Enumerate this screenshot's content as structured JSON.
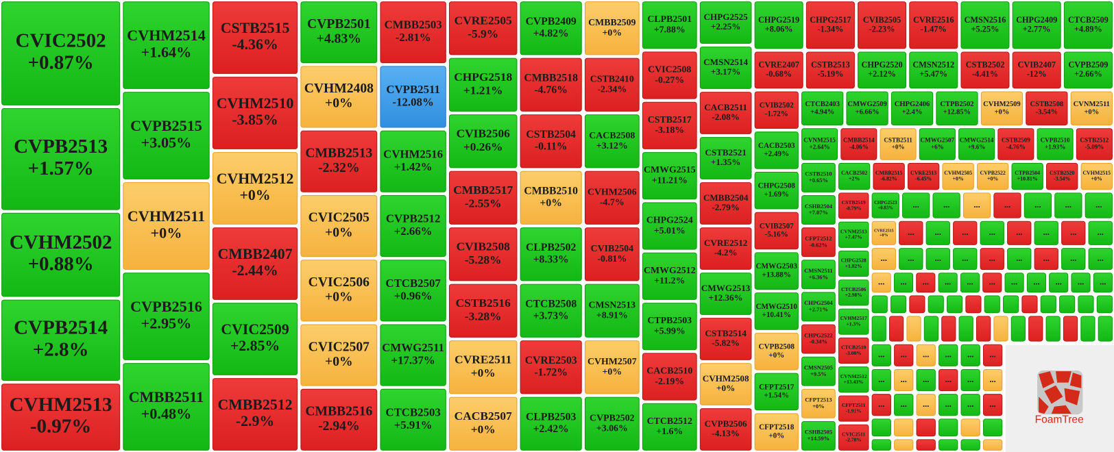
{
  "treemap": {
    "groups": [
      {
        "tiles": [
          {
            "code": "CVIC2502",
            "change": "+0.87%"
          },
          {
            "code": "CVPB2513",
            "change": "+1.57%"
          },
          {
            "code": "CVHM2502",
            "change": "+0.88%"
          },
          {
            "code": "CVPB2514",
            "change": "+2.8%"
          },
          {
            "code": "CVHM2513",
            "change": "-0.97%"
          }
        ]
      },
      {
        "tiles": [
          {
            "code": "CVHM2514",
            "change": "+1.64%"
          },
          {
            "code": "CVPB2515",
            "change": "+3.05%"
          },
          {
            "code": "CVHM2511",
            "change": "+0%"
          },
          {
            "code": "CVPB2516",
            "change": "+2.95%"
          },
          {
            "code": "CMBB2511",
            "change": "+0.48%"
          }
        ]
      },
      {
        "tiles": [
          {
            "code": "CSTB2515",
            "change": "-4.36%"
          },
          {
            "code": "CVHM2510",
            "change": "-3.85%"
          },
          {
            "code": "CVHM2512",
            "change": "+0%"
          },
          {
            "code": "CMBB2407",
            "change": "-2.44%"
          },
          {
            "code": "CVIC2509",
            "change": "+2.85%"
          },
          {
            "code": "CMBB2512",
            "change": "-2.9%"
          }
        ]
      },
      {
        "tiles": [
          {
            "code": "CVPB2501",
            "change": "+4.83%"
          },
          {
            "code": "CVHM2408",
            "change": "+0%"
          },
          {
            "code": "CMBB2513",
            "change": "-2.32%"
          },
          {
            "code": "CVIC2505",
            "change": "+0%"
          },
          {
            "code": "CVIC2506",
            "change": "+0%"
          },
          {
            "code": "CVIC2507",
            "change": "+0%"
          },
          {
            "code": "CMBB2516",
            "change": "-2.94%"
          }
        ]
      },
      {
        "tiles": [
          {
            "code": "CMBB2503",
            "change": "-2.81%"
          },
          {
            "code": "CVPB2511",
            "change": "-12.08%",
            "selected": true
          },
          {
            "code": "CVHM2516",
            "change": "+1.42%"
          },
          {
            "code": "CVPB2512",
            "change": "+2.66%"
          },
          {
            "code": "CTCB2507",
            "change": "+0.96%"
          },
          {
            "code": "CMWG2511",
            "change": "+17.37%"
          },
          {
            "code": "CTCB2503",
            "change": "+5.91%"
          }
        ]
      },
      {
        "tiles": [
          {
            "code": "CVRE2505",
            "change": "-5.9%"
          },
          {
            "code": "CHPG2518",
            "change": "+1.21%"
          },
          {
            "code": "CVIB2506",
            "change": "+0.26%"
          },
          {
            "code": "CMBB2517",
            "change": "-2.55%"
          },
          {
            "code": "CVIB2508",
            "change": "-5.28%"
          },
          {
            "code": "CSTB2516",
            "change": "-3.28%"
          },
          {
            "code": "CVRE2511",
            "change": "+0%"
          },
          {
            "code": "CACB2507",
            "change": "+0%"
          }
        ]
      },
      {
        "tiles": [
          {
            "code": "CVPB2409",
            "change": "+4.82%"
          },
          {
            "code": "CMBB2518",
            "change": "-4.76%"
          },
          {
            "code": "CSTB2504",
            "change": "-0.11%"
          },
          {
            "code": "CMBB2510",
            "change": "+0%"
          },
          {
            "code": "CLPB2502",
            "change": "+8.33%"
          },
          {
            "code": "CTCB2508",
            "change": "+3.73%"
          },
          {
            "code": "CVRE2503",
            "change": "-1.72%"
          },
          {
            "code": "CLPB2503",
            "change": "+2.42%"
          }
        ]
      },
      {
        "tiles": [
          {
            "code": "CMBB2509",
            "change": "+0%"
          },
          {
            "code": "CSTB2410",
            "change": "-2.34%"
          },
          {
            "code": "CACB2508",
            "change": "+3.12%"
          },
          {
            "code": "CVHM2506",
            "change": "-4.7%"
          },
          {
            "code": "CVIB2504",
            "change": "-0.81%"
          },
          {
            "code": "CMSN2513",
            "change": "+8.91%"
          },
          {
            "code": "CVHM2507",
            "change": "+0%"
          },
          {
            "code": "CVPB2502",
            "change": "+3.06%"
          }
        ]
      },
      {
        "tiles": [
          {
            "code": "CLPB2501",
            "change": "+7.88%"
          },
          {
            "code": "CVIC2508",
            "change": "-0.27%"
          },
          {
            "code": "CSTB2517",
            "change": "-3.18%"
          },
          {
            "code": "CMWG2515",
            "change": "+11.21%"
          },
          {
            "code": "CHPG2524",
            "change": "+5.01%"
          },
          {
            "code": "CMWG2512",
            "change": "+11.2%"
          },
          {
            "code": "CTPB2503",
            "change": "+5.99%"
          },
          {
            "code": "CACB2510",
            "change": "-2.19%"
          },
          {
            "code": "CTCB2512",
            "change": "+1.6%"
          }
        ]
      },
      {
        "tiles": [
          {
            "code": "CHPG2525",
            "change": "+2.25%"
          },
          {
            "code": "CMSN2514",
            "change": "+3.17%"
          },
          {
            "code": "CACB2511",
            "change": "-2.08%"
          },
          {
            "code": "CSTB2521",
            "change": "+1.35%"
          },
          {
            "code": "CMBB2504",
            "change": "-2.79%"
          },
          {
            "code": "CVRE2512",
            "change": "-4.2%"
          },
          {
            "code": "CMWG2513",
            "change": "+12.36%"
          },
          {
            "code": "CSTB2514",
            "change": "-5.82%"
          },
          {
            "code": "CVHM2508",
            "change": "+0%"
          },
          {
            "code": "CVPB2506",
            "change": "-4.13%"
          }
        ]
      },
      {
        "tiles": [
          {
            "code": "CHPG2519",
            "change": "+8.06%"
          },
          {
            "code": "CHPG2517",
            "change": "-1.34%"
          },
          {
            "code": "CVIB2505",
            "change": "-2.23%"
          },
          {
            "code": "CVRE2516",
            "change": "-1.47%"
          },
          {
            "code": "CMSN2516",
            "change": "+5.25%"
          },
          {
            "code": "CHPG2409",
            "change": "+2.77%"
          },
          {
            "code": "CTCB2509",
            "change": "+4.89%"
          }
        ]
      },
      {
        "tiles": [
          {
            "code": "CVRE2407",
            "change": "-0.68%"
          },
          {
            "code": "CSTB2513",
            "change": "-5.19%"
          },
          {
            "code": "CHPG2520",
            "change": "+2.12%"
          },
          {
            "code": "CMSN2512",
            "change": "+5.47%"
          },
          {
            "code": "CSTB2502",
            "change": "-4.41%"
          },
          {
            "code": "CVIB2407",
            "change": "-12%"
          },
          {
            "code": "CVPB2509",
            "change": "+2.66%"
          }
        ]
      },
      {
        "tiles": [
          {
            "code": "CVIB2502",
            "change": "-1.72%"
          },
          {
            "code": "CACB2503",
            "change": "+2.49%"
          },
          {
            "code": "CHPG2508",
            "change": "+1.69%"
          },
          {
            "code": "CVIB2507",
            "change": "-5.16%"
          },
          {
            "code": "CMWG2503",
            "change": "+13.88%"
          },
          {
            "code": "CMWG2510",
            "change": "+10.41%"
          },
          {
            "code": "CVPB2508",
            "change": "+0%"
          },
          {
            "code": "CFPT2517",
            "change": "+1.54%"
          },
          {
            "code": "CFPT2518",
            "change": "+0%"
          }
        ]
      },
      {
        "tiles": [
          {
            "code": "CTCB2403",
            "change": "+4.94%"
          },
          {
            "code": "CMWG2509",
            "change": "+6.66%"
          },
          {
            "code": "CHPG2406",
            "change": "+2.4%"
          },
          {
            "code": "CTPB2502",
            "change": "+12.85%"
          },
          {
            "code": "CVHM2509",
            "change": "+0%"
          },
          {
            "code": "CSTB2508",
            "change": "-3.54%"
          },
          {
            "code": "CVNM2511",
            "change": "+0%"
          }
        ]
      },
      {
        "tiles": [
          {
            "code": "CVNM2515",
            "change": "+2.64%"
          },
          {
            "code": "CMBB2514",
            "change": "-4.06%"
          },
          {
            "code": "CSTB2511",
            "change": "+0%"
          },
          {
            "code": "CMWG2507",
            "change": "+6%"
          },
          {
            "code": "CMWG2514",
            "change": "+9.6%"
          },
          {
            "code": "CSTB2509",
            "change": "-4.76%"
          },
          {
            "code": "CVPB2510",
            "change": "+1.93%"
          },
          {
            "code": "CSTB2512",
            "change": "-5.09%"
          }
        ]
      },
      {
        "tiles": [
          {
            "code": "CSTB2510",
            "change": "+0.65%"
          },
          {
            "code": "CSHB2504",
            "change": "+7.07%"
          },
          {
            "code": "CFPT2512",
            "change": "-0.62%"
          },
          {
            "code": "CMSN2511",
            "change": "+6.36%"
          },
          {
            "code": "CHPG2504",
            "change": "+2.71%"
          },
          {
            "code": "CHPG2522",
            "change": "-0.34%"
          },
          {
            "code": "CMSN2505",
            "change": "+9.5%"
          },
          {
            "code": "CFPT2513",
            "change": "+0%"
          },
          {
            "code": "CSHB2505",
            "change": "+14.59%"
          }
        ]
      },
      {
        "tiles": [
          {
            "code": "CACB2502",
            "change": "+2%"
          },
          {
            "code": "CMBB2515",
            "change": "-6.82%"
          },
          {
            "code": "CVRE2513",
            "change": "-6.45%"
          },
          {
            "code": "CVHM2505",
            "change": "+0%"
          },
          {
            "code": "CVPB2522",
            "change": "+0%"
          },
          {
            "code": "CTPB2504",
            "change": "+10.81%"
          },
          {
            "code": "CSTB2520",
            "change": "-3.54%"
          },
          {
            "code": "CVHM2515",
            "change": "+0%"
          }
        ]
      },
      {
        "tiles": [
          {
            "code": "CSTB2519",
            "change": "-8.79%"
          },
          {
            "code": "CVNM2513",
            "change": "+7.47%"
          },
          {
            "code": "CHPG2528",
            "change": "+1.82%"
          },
          {
            "code": "CTCB2506",
            "change": "+2.98%"
          },
          {
            "code": "CVHM2517",
            "change": "+1.3%"
          },
          {
            "code": "CTCB2510",
            "change": "-3.08%"
          },
          {
            "code": "CVNM2512",
            "change": "+13.43%"
          },
          {
            "code": "CFPT2511",
            "change": "-1.91%"
          },
          {
            "code": "CVIC2511",
            "change": "-2.78%"
          }
        ]
      },
      {
        "tiles": [
          {
            "code": "CHPG2523",
            "change": "+0.83%"
          },
          {
            "code": "...",
            "color": "green"
          },
          {
            "code": "...",
            "color": "green"
          },
          {
            "code": "...",
            "color": "orange"
          },
          {
            "code": "...",
            "color": "red"
          },
          {
            "code": "...",
            "color": "green"
          },
          {
            "code": "...",
            "color": "green"
          },
          {
            "code": "...",
            "color": "green"
          }
        ]
      },
      {
        "tiles": [
          {
            "code": "CVRE2515",
            "change": "+0%"
          },
          {
            "code": "...",
            "color": "red"
          },
          {
            "code": "...",
            "color": "green"
          },
          {
            "code": "...",
            "color": "red"
          },
          {
            "code": "...",
            "color": "green"
          },
          {
            "code": "...",
            "color": "red"
          },
          {
            "code": "...",
            "color": "green"
          },
          {
            "code": "...",
            "color": "red"
          },
          {
            "code": "...",
            "color": "green"
          }
        ]
      },
      {
        "tiles": [
          {
            "code": "...",
            "color": "orange"
          },
          {
            "code": "...",
            "color": "green"
          },
          {
            "code": "...",
            "color": "green"
          },
          {
            "code": "...",
            "color": "green"
          },
          {
            "code": "...",
            "color": "red"
          },
          {
            "code": "...",
            "color": "green"
          },
          {
            "code": "...",
            "color": "red"
          },
          {
            "code": "...",
            "color": "green"
          },
          {
            "code": "...",
            "color": "green"
          }
        ]
      },
      {
        "tiles": [
          {
            "code": "...",
            "color": "orange"
          },
          {
            "code": "...",
            "color": "green"
          },
          {
            "code": "...",
            "color": "red"
          },
          {
            "code": "...",
            "color": "green"
          },
          {
            "code": "...",
            "color": "green"
          },
          {
            "code": "...",
            "color": "red"
          },
          {
            "code": "...",
            "color": "green"
          },
          {
            "code": "...",
            "color": "green"
          },
          {
            "code": "...",
            "color": "green"
          },
          {
            "code": "...",
            "color": "green"
          },
          {
            "code": "...",
            "color": "green"
          }
        ]
      },
      {
        "tiles": [
          {
            "color": "green"
          },
          {
            "color": "green"
          },
          {
            "color": "red"
          },
          {
            "color": "green"
          },
          {
            "color": "green"
          },
          {
            "color": "red"
          },
          {
            "color": "green"
          },
          {
            "color": "green"
          },
          {
            "color": "red"
          },
          {
            "color": "green"
          },
          {
            "color": "green"
          },
          {
            "color": "green"
          },
          {
            "color": "green"
          }
        ]
      },
      {
        "tiles": [
          {
            "color": "green"
          },
          {
            "color": "red"
          },
          {
            "color": "orange"
          },
          {
            "color": "green"
          },
          {
            "color": "red"
          },
          {
            "color": "green"
          },
          {
            "color": "red"
          },
          {
            "color": "orange"
          },
          {
            "color": "green"
          },
          {
            "color": "red"
          },
          {
            "color": "green"
          },
          {
            "color": "red"
          },
          {
            "color": "green"
          },
          {
            "color": "green"
          }
        ]
      },
      {
        "tiles": [
          {
            "code": "...",
            "color": "green"
          },
          {
            "code": "...",
            "color": "red"
          },
          {
            "code": "...",
            "color": "orange"
          },
          {
            "code": "...",
            "color": "green"
          },
          {
            "code": "...",
            "color": "green"
          },
          {
            "code": "...",
            "color": "red"
          }
        ]
      },
      {
        "tiles": [
          {
            "code": "...",
            "color": "green"
          },
          {
            "code": "...",
            "color": "orange"
          },
          {
            "code": "...",
            "color": "green"
          },
          {
            "code": "...",
            "color": "red"
          },
          {
            "code": "...",
            "color": "green"
          },
          {
            "code": "...",
            "color": "orange"
          }
        ]
      },
      {
        "tiles": [
          {
            "code": "...",
            "color": "red"
          },
          {
            "code": "...",
            "color": "green"
          },
          {
            "code": "...",
            "color": "orange"
          },
          {
            "code": "...",
            "color": "green"
          },
          {
            "code": "...",
            "color": "green"
          },
          {
            "code": "...",
            "color": "red"
          }
        ]
      },
      {
        "tiles": [
          {
            "color": "green"
          },
          {
            "color": "orange"
          },
          {
            "color": "red"
          },
          {
            "color": "green"
          },
          {
            "color": "orange"
          },
          {
            "color": "green"
          }
        ]
      },
      {
        "tiles": [
          {
            "color": "green"
          },
          {
            "color": "orange"
          },
          {
            "color": "red"
          },
          {
            "color": "green"
          },
          {
            "color": "green"
          },
          {
            "color": "orange"
          }
        ]
      }
    ],
    "logo": "FoamTree"
  }
}
